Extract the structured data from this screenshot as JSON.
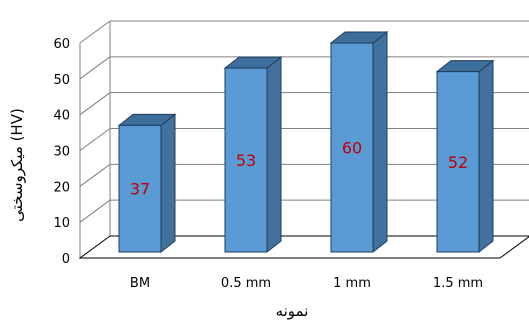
{
  "chart_data": {
    "type": "bar",
    "style": "3d-column",
    "categories": [
      "BM",
      "0.5 mm",
      "1 mm",
      "1.5 mm"
    ],
    "values": [
      37,
      53,
      60,
      52
    ],
    "data_labels": [
      "37",
      "53",
      "60",
      "52"
    ],
    "xlabel": "نمونه",
    "ylabel": "(HV)  میکروسختی",
    "ylim": [
      0,
      60
    ],
    "yticks": [
      "0",
      "10",
      "20",
      "30",
      "40",
      "50",
      "60"
    ],
    "grid": true,
    "legend": "none",
    "colors": {
      "bar_front": "#5b9bd5",
      "bar_side": "#41719c",
      "bar_top": "#3e6f9c",
      "bar_edge": "#1f3d5c",
      "data_label": "#c00000",
      "grid": "#7f7f7f"
    }
  }
}
